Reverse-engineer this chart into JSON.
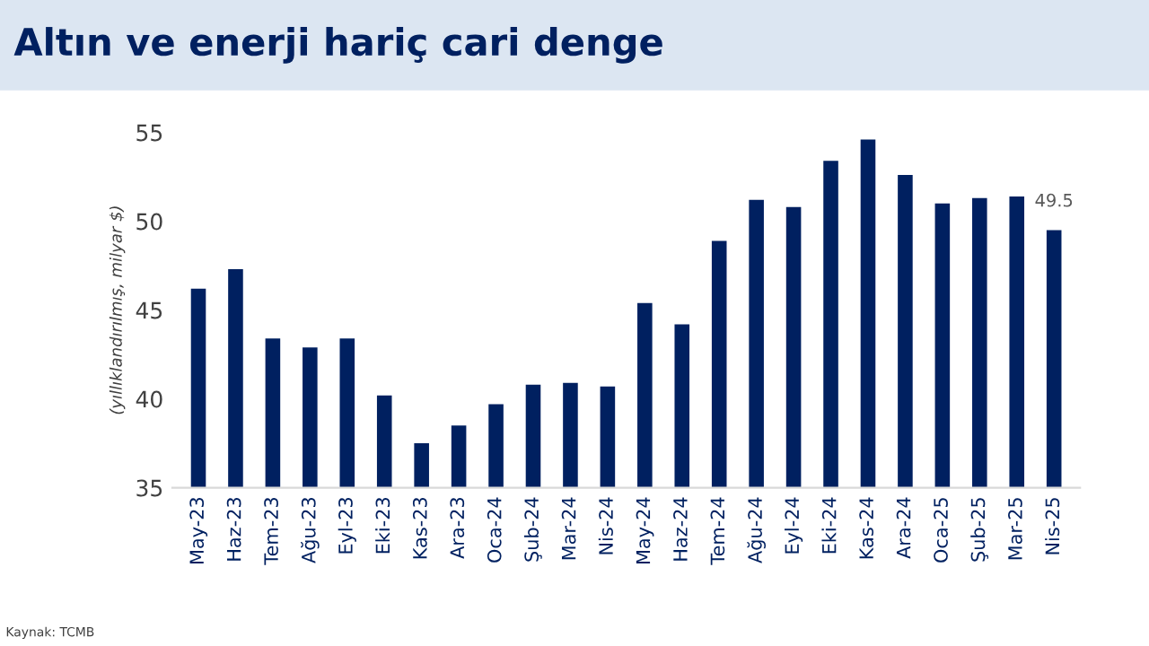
{
  "chart_data": {
    "type": "bar",
    "title": "Altın ve enerji hariç cari denge",
    "ylabel": "(yıllıklandırılmış, milyar $)",
    "categories": [
      "May-23",
      "Haz-23",
      "Tem-23",
      "Ağu-23",
      "Eyl-23",
      "Eki-23",
      "Kas-23",
      "Ara-23",
      "Oca-24",
      "Şub-24",
      "Mar-24",
      "Nis-24",
      "May-24",
      "Haz-24",
      "Tem-24",
      "Ağu-24",
      "Eyl-24",
      "Eki-24",
      "Kas-24",
      "Ara-24",
      "Oca-25",
      "Şub-25",
      "Mar-25",
      "Nis-25"
    ],
    "values": [
      46.2,
      47.3,
      43.4,
      42.9,
      43.4,
      40.2,
      37.5,
      38.5,
      39.7,
      40.8,
      40.9,
      40.7,
      45.4,
      44.2,
      48.9,
      51.2,
      50.8,
      53.4,
      54.6,
      52.6,
      51.0,
      51.3,
      51.4,
      49.5
    ],
    "value_labels": [
      null,
      null,
      null,
      null,
      null,
      null,
      null,
      null,
      null,
      null,
      null,
      null,
      null,
      null,
      null,
      null,
      null,
      null,
      null,
      null,
      null,
      null,
      null,
      "49.5"
    ],
    "color": "#002060",
    "ylim": [
      35,
      55
    ],
    "yticks": [
      35,
      40,
      45,
      50,
      55
    ],
    "grid": false,
    "legend": false,
    "annotations": [
      "Kaynak: TCMB"
    ]
  }
}
